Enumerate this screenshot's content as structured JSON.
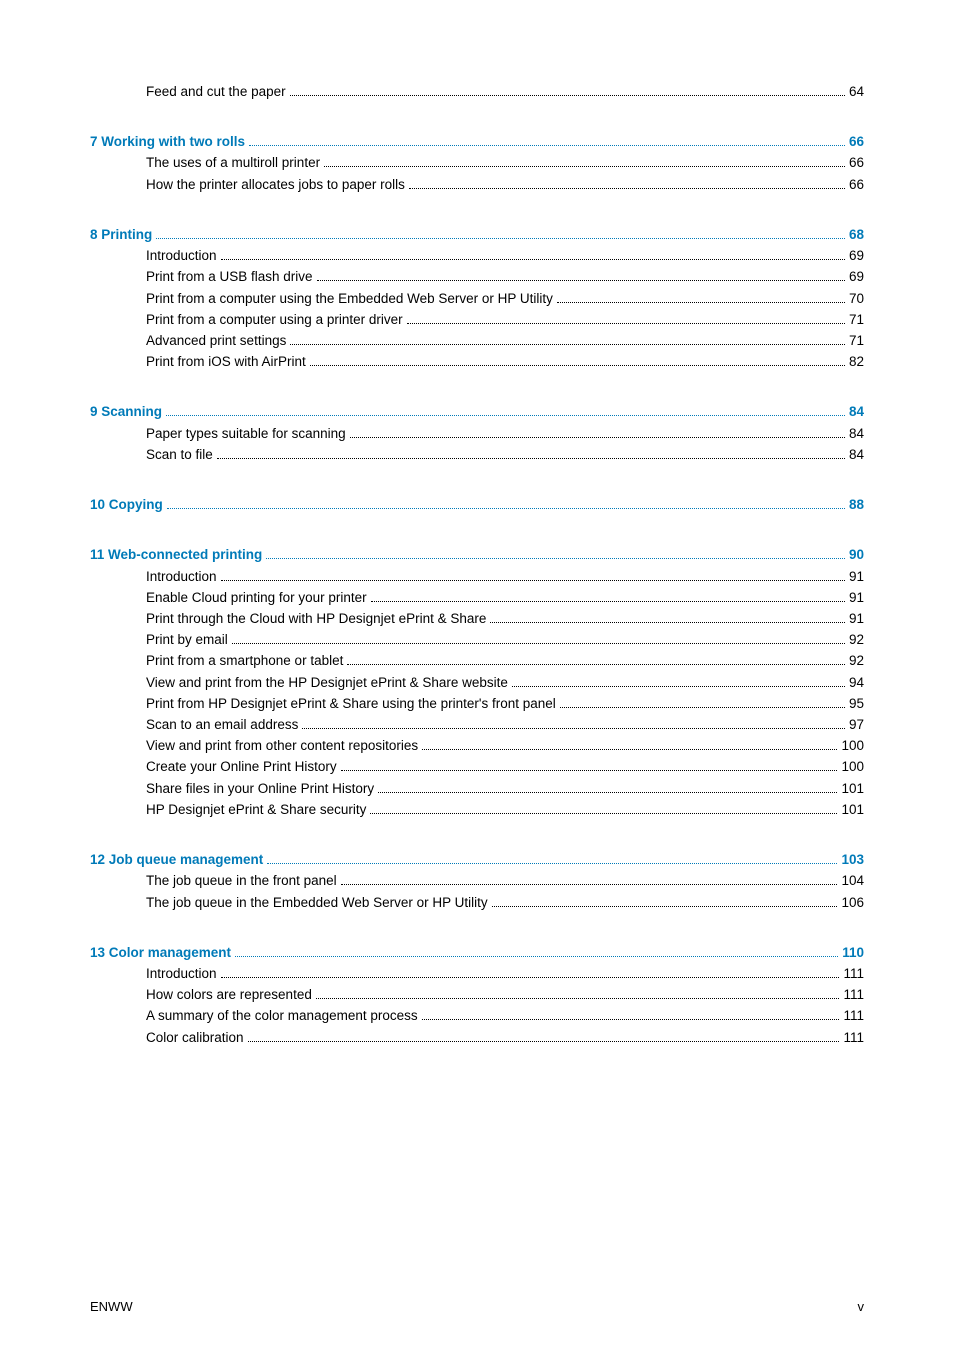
{
  "colors": {
    "heading": "#007ab8",
    "body": "#000000",
    "background": "#ffffff"
  },
  "typography": {
    "body_fontsize_pt": 10,
    "heading_weight": "bold",
    "font_family": "Arial, Helvetica, sans-serif"
  },
  "toc": [
    {
      "heading": null,
      "items": [
        {
          "label": "Feed and cut the paper",
          "page": "64"
        }
      ]
    },
    {
      "heading": {
        "label": "7  Working with two rolls",
        "page": "66"
      },
      "items": [
        {
          "label": "The uses of a multiroll printer",
          "page": "66"
        },
        {
          "label": "How the printer allocates jobs to paper rolls",
          "page": "66"
        }
      ]
    },
    {
      "heading": {
        "label": "8  Printing",
        "page": "68"
      },
      "items": [
        {
          "label": "Introduction",
          "page": "69"
        },
        {
          "label": "Print from a USB flash drive",
          "page": "69"
        },
        {
          "label": "Print from a computer using the Embedded Web Server or HP Utility",
          "page": "70"
        },
        {
          "label": "Print from a computer using a printer driver",
          "page": "71"
        },
        {
          "label": "Advanced print settings",
          "page": "71"
        },
        {
          "label": "Print from iOS with AirPrint",
          "page": "82"
        }
      ]
    },
    {
      "heading": {
        "label": "9  Scanning",
        "page": "84"
      },
      "items": [
        {
          "label": "Paper types suitable for scanning",
          "page": "84"
        },
        {
          "label": "Scan to file",
          "page": "84"
        }
      ]
    },
    {
      "heading": {
        "label": "10  Copying",
        "page": "88"
      },
      "items": []
    },
    {
      "heading": {
        "label": "11  Web-connected printing",
        "page": "90"
      },
      "items": [
        {
          "label": "Introduction",
          "page": "91"
        },
        {
          "label": "Enable Cloud printing for your printer",
          "page": "91"
        },
        {
          "label": "Print through the Cloud with HP Designjet ePrint & Share",
          "page": "91"
        },
        {
          "label": "Print by email",
          "page": "92"
        },
        {
          "label": "Print from a smartphone or tablet",
          "page": "92"
        },
        {
          "label": "View and print from the HP Designjet ePrint & Share website",
          "page": "94"
        },
        {
          "label": "Print from HP Designjet ePrint & Share using the printer's front panel",
          "page": "95"
        },
        {
          "label": "Scan to an email address",
          "page": "97"
        },
        {
          "label": "View and print from other content repositories",
          "page": "100"
        },
        {
          "label": "Create your Online Print History",
          "page": "100"
        },
        {
          "label": "Share files in your Online Print History",
          "page": "101"
        },
        {
          "label": "HP Designjet ePrint & Share security",
          "page": "101"
        }
      ]
    },
    {
      "heading": {
        "label": "12  Job queue management",
        "page": "103"
      },
      "items": [
        {
          "label": "The job queue in the front panel",
          "page": "104"
        },
        {
          "label": "The job queue in the Embedded Web Server or HP Utility",
          "page": "106"
        }
      ]
    },
    {
      "heading": {
        "label": "13  Color management",
        "page": "110"
      },
      "items": [
        {
          "label": "Introduction",
          "page": "111"
        },
        {
          "label": "How colors are represented",
          "page": "111"
        },
        {
          "label": "A summary of the color management process",
          "page": "111"
        },
        {
          "label": "Color calibration",
          "page": "111"
        }
      ]
    }
  ],
  "footer": {
    "left": "ENWW",
    "right": "v"
  }
}
